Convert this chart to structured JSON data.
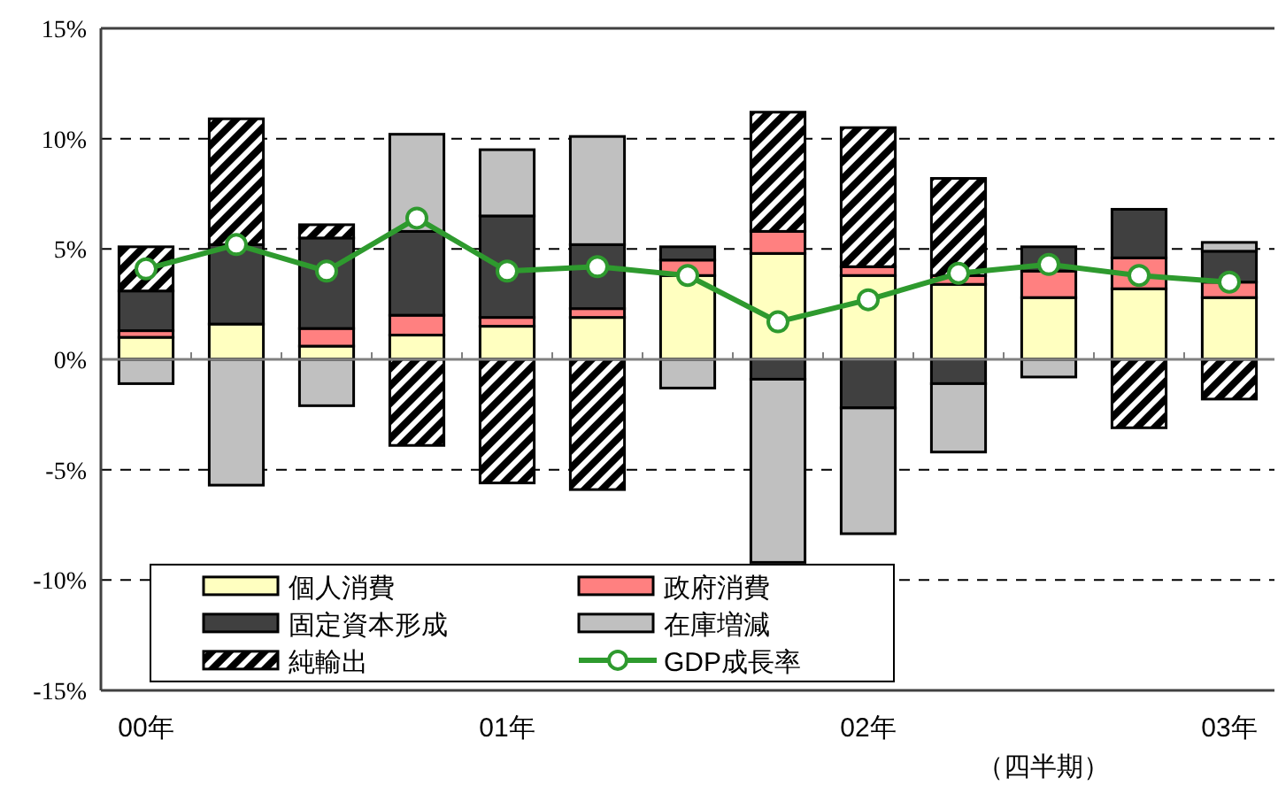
{
  "chart_data": {
    "type": "bar",
    "stacked": true,
    "categories": [
      "00年",
      null,
      null,
      null,
      "01年",
      null,
      null,
      null,
      "02年",
      null,
      null,
      null,
      "03年"
    ],
    "series": [
      {
        "name": "個人消費",
        "color": "#ffffc0",
        "values": [
          1.0,
          1.6,
          0.6,
          1.1,
          1.5,
          1.9,
          3.8,
          4.8,
          3.8,
          3.4,
          2.8,
          3.2,
          2.8
        ]
      },
      {
        "name": "政府消費",
        "color": "#ff8080",
        "values": [
          0.3,
          null,
          0.8,
          0.9,
          0.4,
          0.4,
          0.7,
          1.0,
          0.4,
          0.4,
          1.2,
          1.4,
          0.7
        ]
      },
      {
        "name": "固定資本形成",
        "color": "#404040",
        "values": [
          1.8,
          3.6,
          4.1,
          3.8,
          4.6,
          2.9,
          0.6,
          -0.9,
          -2.2,
          -1.1,
          1.1,
          2.2,
          1.4
        ]
      },
      {
        "name": "在庫増減",
        "color": "#c0c0c0",
        "values": [
          -1.1,
          -5.7,
          -2.1,
          4.4,
          3.0,
          4.9,
          -1.3,
          -8.3,
          -5.7,
          -3.1,
          -0.8,
          null,
          0.4
        ]
      },
      {
        "name": "純輸出",
        "color": "#000000",
        "values": [
          2.0,
          5.7,
          0.6,
          -3.9,
          -5.6,
          -5.9,
          null,
          5.4,
          6.3,
          4.4,
          null,
          -3.1,
          -1.8
        ]
      },
      {
        "name": "GDP成長率",
        "type": "line",
        "color": "#2e9a2e",
        "marker": "circle",
        "values": [
          4.1,
          5.2,
          4.0,
          6.4,
          4.0,
          4.2,
          3.8,
          1.7,
          2.7,
          3.9,
          4.3,
          3.8,
          3.5
        ]
      }
    ],
    "ylim": [
      -15,
      15
    ],
    "yticks": [
      {
        "value": -15,
        "label": "-15%"
      },
      {
        "value": -10,
        "label": "-10%"
      },
      {
        "value": -5,
        "label": "-5%"
      },
      {
        "value": 0,
        "label": "0%"
      },
      {
        "value": 5,
        "label": "5%"
      },
      {
        "value": 10,
        "label": "10%"
      },
      {
        "value": 15,
        "label": "15%"
      }
    ],
    "grid": "y",
    "legend": "bottom left",
    "annotations": [
      "（四半期）"
    ]
  }
}
